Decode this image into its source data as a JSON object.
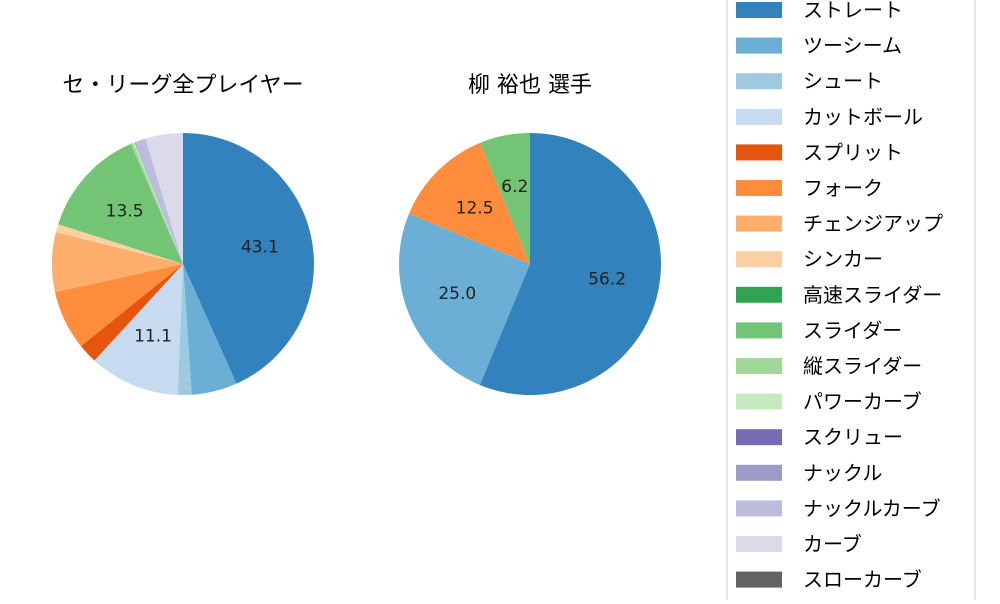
{
  "chart_data": [
    {
      "type": "pie",
      "title": "セ・リーグ全プレイヤー",
      "slices": [
        {
          "label": "ストレート",
          "value": 43.1,
          "color": "#3182bd",
          "show_label": true
        },
        {
          "label": "ツーシーム",
          "value": 5.6,
          "color": "#6baed6",
          "show_label": false
        },
        {
          "label": "シュート",
          "value": 1.7,
          "color": "#9ecae1",
          "show_label": false
        },
        {
          "label": "カットボール",
          "value": 11.1,
          "color": "#c6dbef",
          "show_label": true
        },
        {
          "label": "スプリット",
          "value": 2.4,
          "color": "#e6550d",
          "show_label": false
        },
        {
          "label": "フォーク",
          "value": 7.3,
          "color": "#fd8d3c",
          "show_label": false
        },
        {
          "label": "チェンジアップ",
          "value": 7.3,
          "color": "#fdae6b",
          "show_label": false
        },
        {
          "label": "シンカー",
          "value": 1.0,
          "color": "#fdd0a2",
          "show_label": false
        },
        {
          "label": "高速スライダー",
          "value": 0.0,
          "color": "#31a354",
          "show_label": false
        },
        {
          "label": "スライダー",
          "value": 13.5,
          "color": "#74c476",
          "show_label": true
        },
        {
          "label": "縦スライダー",
          "value": 0.3,
          "color": "#a1d99b",
          "show_label": false
        },
        {
          "label": "パワーカーブ",
          "value": 0.2,
          "color": "#c7e9c0",
          "show_label": false
        },
        {
          "label": "スクリュー",
          "value": 0.0,
          "color": "#756bb1",
          "show_label": false
        },
        {
          "label": "ナックル",
          "value": 0.1,
          "color": "#9e9ac8",
          "show_label": false
        },
        {
          "label": "ナックルカーブ",
          "value": 1.3,
          "color": "#bcbddc",
          "show_label": false
        },
        {
          "label": "カーブ",
          "value": 4.6,
          "color": "#dadaeb",
          "show_label": false
        },
        {
          "label": "スローカーブ",
          "value": 0.0,
          "color": "#636363",
          "show_label": false
        }
      ]
    },
    {
      "type": "pie",
      "title": "柳 裕也  選手",
      "slices": [
        {
          "label": "ストレート",
          "value": 56.2,
          "color": "#3182bd",
          "show_label": true
        },
        {
          "label": "ツーシーム",
          "value": 25.0,
          "color": "#6baed6",
          "show_label": true
        },
        {
          "label": "フォーク",
          "value": 12.5,
          "color": "#fd8d3c",
          "show_label": true
        },
        {
          "label": "スライダー",
          "value": 6.2,
          "color": "#74c476",
          "show_label": true
        }
      ]
    }
  ],
  "legend": {
    "placement": "right",
    "entries": [
      {
        "label": "ストレート",
        "color": "#3182bd"
      },
      {
        "label": "ツーシーム",
        "color": "#6baed6"
      },
      {
        "label": "シュート",
        "color": "#9ecae1"
      },
      {
        "label": "カットボール",
        "color": "#c6dbef"
      },
      {
        "label": "スプリット",
        "color": "#e6550d"
      },
      {
        "label": "フォーク",
        "color": "#fd8d3c"
      },
      {
        "label": "チェンジアップ",
        "color": "#fdae6b"
      },
      {
        "label": "シンカー",
        "color": "#fdd0a2"
      },
      {
        "label": "高速スライダー",
        "color": "#31a354"
      },
      {
        "label": "スライダー",
        "color": "#74c476"
      },
      {
        "label": "縦スライダー",
        "color": "#a1d99b"
      },
      {
        "label": "パワーカーブ",
        "color": "#c7e9c0"
      },
      {
        "label": "スクリュー",
        "color": "#756bb1"
      },
      {
        "label": "ナックル",
        "color": "#9e9ac8"
      },
      {
        "label": "ナックルカーブ",
        "color": "#bcbddc"
      },
      {
        "label": "カーブ",
        "color": "#dadaeb"
      },
      {
        "label": "スローカーブ",
        "color": "#636363"
      }
    ]
  }
}
